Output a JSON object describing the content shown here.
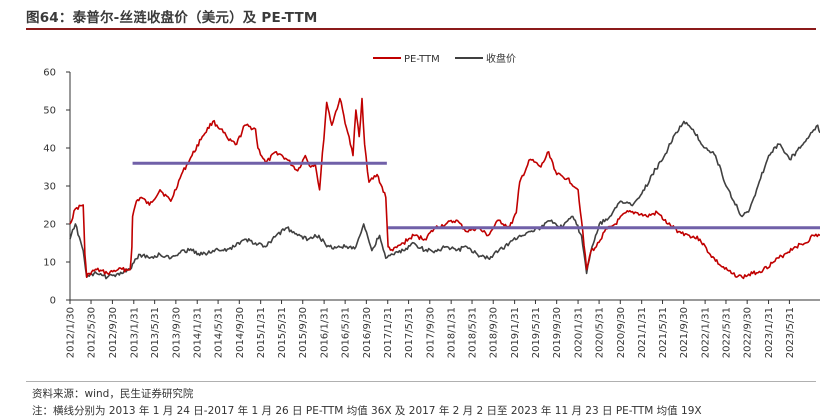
{
  "header": {
    "title": "图64：泰普尔-丝涟收盘价（美元）及 PE-TTM"
  },
  "footer": {
    "source": "资料来源：wind，民生证券研究院",
    "note": "注：横线分别为 2013 年 1 月 24 日-2017 年 1 月 26 日 PE-TTM 均值 36X 及 2017 年 2 月 2 日至 2023 年 11 月 23 日 PE-TTM 均值 19X"
  },
  "colors": {
    "pe": "#c00000",
    "price": "#404040",
    "mean_line": "#7060a8"
  },
  "chart_data": {
    "type": "line",
    "title": "",
    "xlabel": "",
    "ylabel": "",
    "ylim": [
      0,
      60
    ],
    "yticks": [
      0,
      10,
      20,
      30,
      40,
      50,
      60
    ],
    "xlim": [
      "2012-01-30",
      "2023-11-23"
    ],
    "xticks": [
      "2012/1/30",
      "2012/5/30",
      "2012/9/30",
      "2013/1/31",
      "2013/5/31",
      "2013/9/30",
      "2014/1/31",
      "2014/5/31",
      "2014/9/30",
      "2015/1/31",
      "2015/5/31",
      "2015/9/30",
      "2016/1/31",
      "2016/5/31",
      "2016/9/30",
      "2017/1/31",
      "2017/5/31",
      "2017/9/30",
      "2018/1/31",
      "2018/5/31",
      "2018/9/30",
      "2019/1/31",
      "2019/5/31",
      "2019/9/30",
      "2020/1/31",
      "2020/5/31",
      "2020/9/30",
      "2021/1/31",
      "2021/5/31",
      "2021/9/30",
      "2022/1/31",
      "2022/5/31",
      "2022/9/30",
      "2023/1/31",
      "2023/5/31"
    ],
    "legend": "top-center",
    "grid": false,
    "series": [
      {
        "name": "PE-TTM",
        "x": [
          "2012-01-30",
          "2012-03-01",
          "2012-04-15",
          "2012-04-25",
          "2012-05-05",
          "2012-05-20",
          "2012-07-01",
          "2012-09-01",
          "2012-11-01",
          "2013-01-10",
          "2013-01-20",
          "2013-01-24",
          "2013-02-15",
          "2013-03-15",
          "2013-05-01",
          "2013-07-01",
          "2013-09-01",
          "2013-11-01",
          "2014-01-01",
          "2014-03-01",
          "2014-05-01",
          "2014-06-15",
          "2014-08-01",
          "2014-09-15",
          "2014-11-01",
          "2015-01-01",
          "2015-01-15",
          "2015-03-01",
          "2015-05-01",
          "2015-07-01",
          "2015-09-01",
          "2015-10-15",
          "2015-11-15",
          "2015-12-10",
          "2016-01-05",
          "2016-02-15",
          "2016-03-15",
          "2016-05-01",
          "2016-06-15",
          "2016-07-15",
          "2016-08-01",
          "2016-08-20",
          "2016-09-05",
          "2016-09-20",
          "2016-10-15",
          "2016-12-01",
          "2017-01-20",
          "2017-02-02",
          "2017-03-01",
          "2017-05-01",
          "2017-07-01",
          "2017-09-01",
          "2017-11-01",
          "2018-01-01",
          "2018-03-01",
          "2018-05-01",
          "2018-07-01",
          "2018-09-01",
          "2018-11-01",
          "2019-01-01",
          "2019-02-10",
          "2019-03-01",
          "2019-05-01",
          "2019-07-01",
          "2019-08-15",
          "2019-10-01",
          "2019-12-01",
          "2020-01-31",
          "2020-02-20",
          "2020-03-20",
          "2020-04-15",
          "2020-05-15",
          "2020-07-01",
          "2020-09-01",
          "2020-11-01",
          "2021-01-01",
          "2021-03-01",
          "2021-05-01",
          "2021-07-01",
          "2021-09-01",
          "2021-11-01",
          "2022-01-01",
          "2022-03-01",
          "2022-05-01",
          "2022-07-01",
          "2022-09-01",
          "2022-11-01",
          "2023-01-01",
          "2023-03-01",
          "2023-05-01",
          "2023-07-01",
          "2023-09-01",
          "2023-10-15",
          "2023-11-23"
        ],
        "values": [
          20,
          24,
          25,
          12,
          6,
          7,
          8,
          7,
          8,
          8,
          14,
          22,
          26,
          27,
          25,
          29,
          26,
          33,
          38,
          43,
          47,
          45,
          42,
          41,
          46,
          45,
          40,
          36,
          39,
          37,
          34,
          38,
          35,
          36,
          29,
          52,
          46,
          53,
          44,
          38,
          50,
          43,
          53,
          41,
          31,
          33,
          27,
          14,
          13,
          15,
          17,
          16,
          19,
          20,
          21,
          18,
          19,
          17,
          21,
          19,
          23,
          31,
          37,
          35,
          39,
          33,
          32,
          29,
          21,
          8,
          13,
          14,
          18,
          20,
          23,
          23,
          22,
          23,
          20,
          18,
          17,
          16,
          12,
          9,
          7,
          6,
          7,
          8,
          10,
          12,
          14,
          15,
          17,
          17
        ]
      },
      {
        "name": "收盘价",
        "x": [
          "2012-01-30",
          "2012-03-01",
          "2012-04-15",
          "2012-05-05",
          "2012-07-01",
          "2012-09-01",
          "2012-11-01",
          "2013-01-10",
          "2013-03-01",
          "2013-05-01",
          "2013-07-01",
          "2013-09-01",
          "2013-11-01",
          "2014-01-01",
          "2014-03-01",
          "2014-05-01",
          "2014-07-01",
          "2014-09-01",
          "2014-11-01",
          "2015-01-01",
          "2015-03-01",
          "2015-05-01",
          "2015-07-01",
          "2015-09-01",
          "2015-11-01",
          "2016-01-01",
          "2016-02-15",
          "2016-04-01",
          "2016-06-01",
          "2016-08-01",
          "2016-09-15",
          "2016-11-01",
          "2016-12-15",
          "2017-01-20",
          "2017-03-01",
          "2017-05-01",
          "2017-07-01",
          "2017-09-01",
          "2017-11-01",
          "2018-01-01",
          "2018-03-01",
          "2018-05-01",
          "2018-07-01",
          "2018-09-01",
          "2018-11-01",
          "2019-01-01",
          "2019-03-01",
          "2019-05-01",
          "2019-07-01",
          "2019-09-01",
          "2019-11-01",
          "2020-01-01",
          "2020-02-20",
          "2020-03-20",
          "2020-04-20",
          "2020-06-01",
          "2020-08-01",
          "2020-10-01",
          "2020-12-01",
          "2021-02-01",
          "2021-04-01",
          "2021-06-01",
          "2021-08-01",
          "2021-10-01",
          "2021-12-01",
          "2022-02-01",
          "2022-04-01",
          "2022-06-01",
          "2022-07-15",
          "2022-09-01",
          "2022-10-15",
          "2022-12-01",
          "2023-02-01",
          "2023-04-01",
          "2023-06-01",
          "2023-08-01",
          "2023-10-01",
          "2023-11-10",
          "2023-11-23"
        ],
        "values": [
          16,
          20,
          13,
          6,
          7,
          6,
          7,
          8,
          12,
          11,
          12,
          11,
          13,
          13,
          12,
          13,
          13,
          14,
          16,
          15,
          14,
          17,
          19,
          17,
          16,
          17,
          14,
          14,
          14,
          14,
          20,
          13,
          17,
          11,
          12,
          13,
          15,
          13,
          13,
          14,
          13,
          14,
          12,
          11,
          13,
          15,
          17,
          18,
          19,
          21,
          19,
          22,
          17,
          7,
          14,
          20,
          22,
          26,
          25,
          28,
          33,
          37,
          43,
          47,
          44,
          40,
          38,
          30,
          26,
          22,
          24,
          30,
          38,
          41,
          37,
          40,
          44,
          46,
          44
        ]
      }
    ],
    "mean_lines": [
      {
        "from": "2013-01-24",
        "to": "2017-01-26",
        "value": 36,
        "label": "36X"
      },
      {
        "from": "2017-02-02",
        "to": "2023-11-23",
        "value": 19,
        "label": "19X"
      }
    ]
  }
}
